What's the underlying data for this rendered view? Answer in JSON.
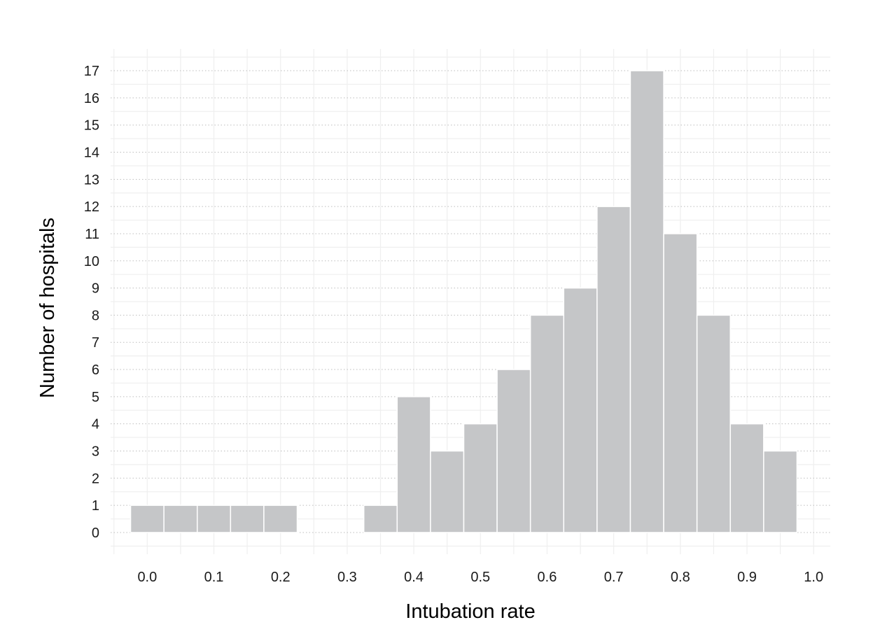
{
  "chart_data": {
    "type": "bar",
    "subtype": "histogram",
    "title": "",
    "xlabel": "Intubation rate",
    "ylabel": "Number of hospitals",
    "bin_width": 0.05,
    "bins": [
      {
        "start": -0.025,
        "end": 0.025,
        "count": 1
      },
      {
        "start": 0.025,
        "end": 0.075,
        "count": 1
      },
      {
        "start": 0.075,
        "end": 0.125,
        "count": 1
      },
      {
        "start": 0.125,
        "end": 0.175,
        "count": 1
      },
      {
        "start": 0.175,
        "end": 0.225,
        "count": 1
      },
      {
        "start": 0.225,
        "end": 0.275,
        "count": 0
      },
      {
        "start": 0.275,
        "end": 0.325,
        "count": 0
      },
      {
        "start": 0.325,
        "end": 0.375,
        "count": 1
      },
      {
        "start": 0.375,
        "end": 0.425,
        "count": 5
      },
      {
        "start": 0.425,
        "end": 0.475,
        "count": 3
      },
      {
        "start": 0.475,
        "end": 0.525,
        "count": 4
      },
      {
        "start": 0.525,
        "end": 0.575,
        "count": 6
      },
      {
        "start": 0.575,
        "end": 0.625,
        "count": 8
      },
      {
        "start": 0.625,
        "end": 0.675,
        "count": 9
      },
      {
        "start": 0.675,
        "end": 0.725,
        "count": 12
      },
      {
        "start": 0.725,
        "end": 0.775,
        "count": 17
      },
      {
        "start": 0.775,
        "end": 0.825,
        "count": 11
      },
      {
        "start": 0.825,
        "end": 0.875,
        "count": 8
      },
      {
        "start": 0.875,
        "end": 0.925,
        "count": 4
      },
      {
        "start": 0.925,
        "end": 0.975,
        "count": 3
      }
    ],
    "x_ticks": [
      "0.0",
      "0.1",
      "0.2",
      "0.3",
      "0.4",
      "0.5",
      "0.6",
      "0.7",
      "0.8",
      "0.9",
      "1.0"
    ],
    "x_tick_values": [
      0.0,
      0.1,
      0.2,
      0.3,
      0.4,
      0.5,
      0.6,
      0.7,
      0.8,
      0.9,
      1.0
    ],
    "y_ticks": [
      "0",
      "1",
      "2",
      "3",
      "4",
      "5",
      "6",
      "7",
      "8",
      "9",
      "10",
      "11",
      "12",
      "13",
      "14",
      "15",
      "16",
      "17"
    ],
    "y_tick_values": [
      0,
      1,
      2,
      3,
      4,
      5,
      6,
      7,
      8,
      9,
      10,
      11,
      12,
      13,
      14,
      15,
      16,
      17
    ],
    "xlim": [
      -0.055,
      1.025
    ],
    "ylim": [
      -0.8,
      17.8
    ],
    "grid": true,
    "legend": "none",
    "colors": {
      "bar_fill": "#c5c6c8",
      "bar_stroke": "#ffffff",
      "grid_major": "#e8e8e8",
      "grid_minor": "#efefef",
      "grid_dotted": "#bdbdbd"
    }
  }
}
